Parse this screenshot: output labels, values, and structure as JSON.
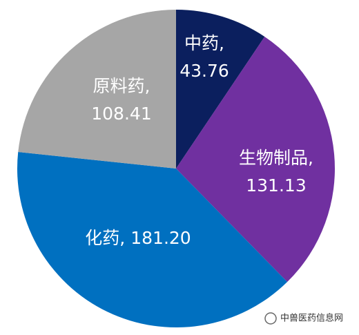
{
  "chart_data": {
    "type": "pie",
    "categories": [
      "中药,",
      "生物制品,",
      "化药,",
      "原料药,"
    ],
    "values": [
      43.76,
      131.13,
      181.2,
      108.41
    ],
    "value_labels": [
      "43.76",
      "131.13",
      "181.20",
      "108.41"
    ],
    "colors": [
      "#0b1f5e",
      "#7030a0",
      "#0070c0",
      "#a6a6a6"
    ]
  },
  "watermark": "中兽医药信息网"
}
